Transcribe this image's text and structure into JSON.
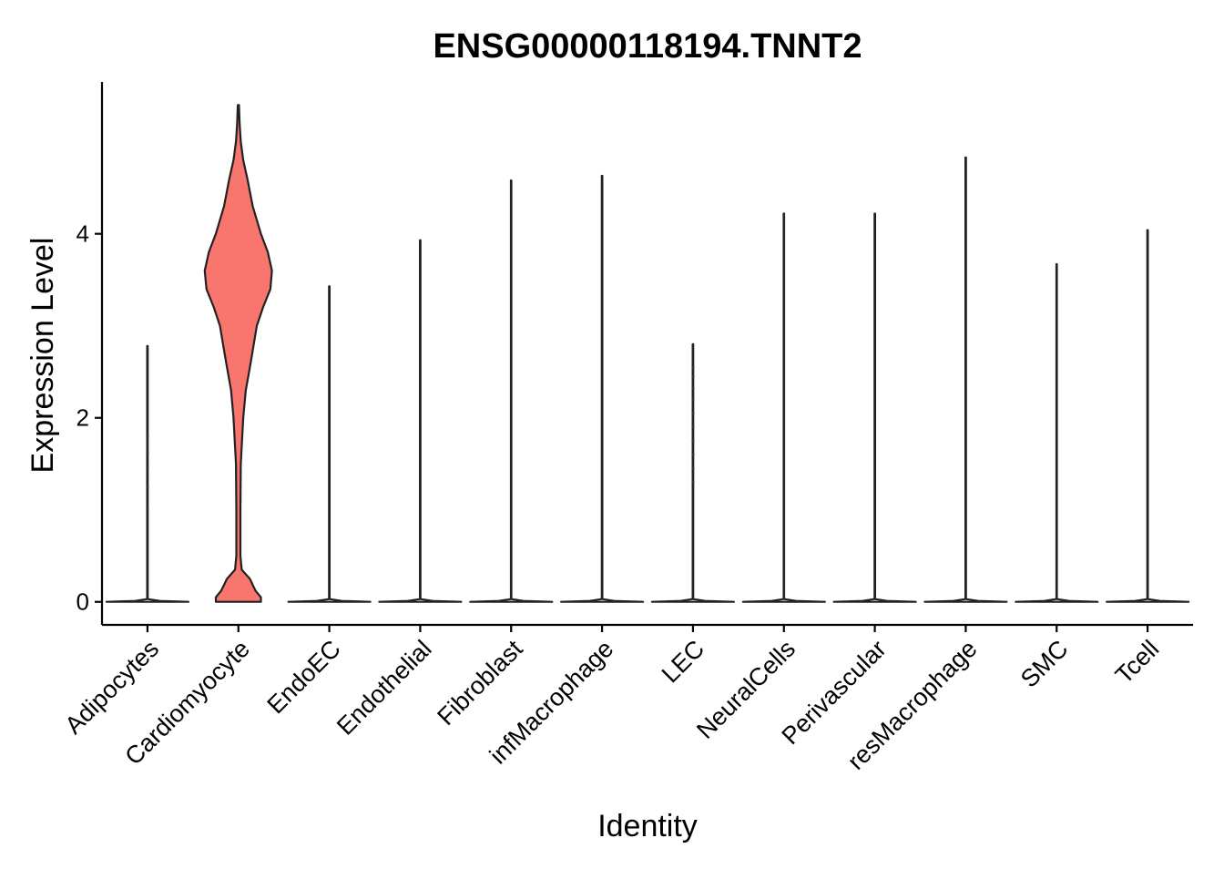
{
  "chart_data": {
    "type": "violin",
    "title": "ENSG00000118194.TNNT2",
    "xlabel": "Identity",
    "ylabel": "Expression Level",
    "ylim": [
      -0.25,
      5.65
    ],
    "yticks": [
      0,
      2,
      4
    ],
    "grid": false,
    "legend": "none",
    "categories": [
      "Adipocytes",
      "Cardiomyocyte",
      "EndoEC",
      "Endothelial",
      "Fibroblast",
      "infMacrophage",
      "LEC",
      "NeuralCells",
      "Perivascular",
      "resMacrophage",
      "SMC",
      "Tcell"
    ],
    "series": [
      {
        "category": "Adipocytes",
        "fill": "#ffffff",
        "max": 2.78,
        "density": [
          [
            0,
            1
          ],
          [
            0.01,
            0.3
          ],
          [
            0.03,
            0.006
          ],
          [
            2.78,
            0.006
          ]
        ],
        "points": [
          1.02,
          1.25,
          1.45,
          1.62,
          1.8
        ]
      },
      {
        "category": "Cardiomyocyte",
        "fill": "#F8766D",
        "max": 5.4,
        "density": [
          [
            0,
            0.55
          ],
          [
            0.05,
            0.55
          ],
          [
            0.12,
            0.42
          ],
          [
            0.25,
            0.28
          ],
          [
            0.35,
            0.08
          ],
          [
            0.5,
            0.05
          ],
          [
            1.0,
            0.05
          ],
          [
            1.5,
            0.06
          ],
          [
            2.0,
            0.12
          ],
          [
            2.3,
            0.18
          ],
          [
            2.6,
            0.3
          ],
          [
            3.0,
            0.45
          ],
          [
            3.2,
            0.6
          ],
          [
            3.4,
            0.78
          ],
          [
            3.6,
            0.82
          ],
          [
            3.8,
            0.72
          ],
          [
            4.0,
            0.55
          ],
          [
            4.3,
            0.35
          ],
          [
            4.6,
            0.22
          ],
          [
            4.8,
            0.12
          ],
          [
            5.0,
            0.06
          ],
          [
            5.2,
            0.03
          ],
          [
            5.4,
            0.015
          ]
        ],
        "points": []
      },
      {
        "category": "EndoEC",
        "fill": "#ffffff",
        "max": 3.43,
        "density": [
          [
            0,
            1
          ],
          [
            0.01,
            0.3
          ],
          [
            0.03,
            0.006
          ],
          [
            3.43,
            0.006
          ]
        ],
        "points": []
      },
      {
        "category": "Endothelial",
        "fill": "#ffffff",
        "max": 3.93,
        "density": [
          [
            0,
            1
          ],
          [
            0.01,
            0.3
          ],
          [
            0.03,
            0.006
          ],
          [
            3.93,
            0.006
          ]
        ],
        "points": []
      },
      {
        "category": "Fibroblast",
        "fill": "#ffffff",
        "max": 4.58,
        "density": [
          [
            0,
            1
          ],
          [
            0.01,
            0.3
          ],
          [
            0.03,
            0.006
          ],
          [
            4.58,
            0.006
          ]
        ],
        "points": []
      },
      {
        "category": "infMacrophage",
        "fill": "#ffffff",
        "max": 4.63,
        "density": [
          [
            0,
            1
          ],
          [
            0.01,
            0.3
          ],
          [
            0.03,
            0.006
          ],
          [
            4.63,
            0.006
          ]
        ],
        "points": []
      },
      {
        "category": "LEC",
        "fill": "#ffffff",
        "max": 2.8,
        "density": [
          [
            0,
            1
          ],
          [
            0.01,
            0.3
          ],
          [
            0.03,
            0.006
          ],
          [
            2.8,
            0.006
          ]
        ],
        "points": [
          1.3,
          1.45,
          1.6,
          1.75,
          1.9,
          2.05,
          2.2,
          2.32,
          2.45,
          2.55
        ]
      },
      {
        "category": "NeuralCells",
        "fill": "#ffffff",
        "max": 4.22,
        "density": [
          [
            0,
            1
          ],
          [
            0.01,
            0.3
          ],
          [
            0.03,
            0.006
          ],
          [
            4.22,
            0.006
          ]
        ],
        "points": []
      },
      {
        "category": "Perivascular",
        "fill": "#ffffff",
        "max": 4.22,
        "density": [
          [
            0,
            1
          ],
          [
            0.01,
            0.3
          ],
          [
            0.03,
            0.006
          ],
          [
            4.22,
            0.006
          ]
        ],
        "points": []
      },
      {
        "category": "resMacrophage",
        "fill": "#ffffff",
        "max": 4.83,
        "density": [
          [
            0,
            1
          ],
          [
            0.01,
            0.3
          ],
          [
            0.03,
            0.006
          ],
          [
            4.83,
            0.006
          ]
        ],
        "points": []
      },
      {
        "category": "SMC",
        "fill": "#ffffff",
        "max": 3.67,
        "density": [
          [
            0,
            1
          ],
          [
            0.01,
            0.3
          ],
          [
            0.03,
            0.006
          ],
          [
            3.67,
            0.006
          ]
        ],
        "points": []
      },
      {
        "category": "Tcell",
        "fill": "#ffffff",
        "max": 4.04,
        "density": [
          [
            0,
            1
          ],
          [
            0.01,
            0.3
          ],
          [
            0.03,
            0.006
          ],
          [
            4.04,
            0.006
          ]
        ],
        "points": []
      }
    ]
  }
}
